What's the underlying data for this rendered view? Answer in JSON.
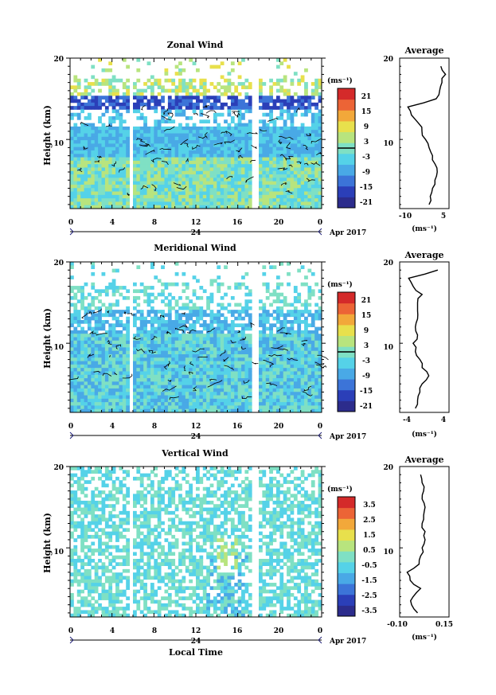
{
  "figure": {
    "x_axis_label": "Local Time",
    "date_label": "Apr 2017",
    "day_label": "24",
    "x_ticks": [
      "0",
      "4",
      "8",
      "12",
      "16",
      "20",
      "0"
    ],
    "height_label": "Height (km)",
    "height_ticks": [
      "20",
      "10"
    ],
    "average_title": "Average",
    "unit_label": "(ms⁻¹)",
    "colormap": [
      "#2c2c8c",
      "#2b3fb8",
      "#3c74d8",
      "#49a9e6",
      "#55d2e8",
      "#7fe0c4",
      "#b8e47e",
      "#e8e04c",
      "#f2a83a",
      "#ec6436",
      "#d42a2a"
    ]
  },
  "panels": [
    {
      "id": "zonal",
      "title": "Zonal Wind",
      "colorbar_ticks": [
        "21",
        "15",
        "9",
        "3",
        "-3",
        "-9",
        "-15",
        "-21"
      ],
      "colorbar_range": [
        -24,
        24
      ],
      "avg_xticks": [
        "-10",
        "5"
      ],
      "avg_xrange": [
        -14,
        7
      ]
    },
    {
      "id": "meridional",
      "title": "Meridional Wind",
      "colorbar_ticks": [
        "21",
        "15",
        "9",
        "3",
        "-3",
        "-9",
        "-15",
        "-21"
      ],
      "colorbar_range": [
        -24,
        24
      ],
      "avg_xticks": [
        "-4",
        "4"
      ],
      "avg_xrange": [
        -6,
        5
      ]
    },
    {
      "id": "vertical",
      "title": "Vertical Wind",
      "colorbar_ticks": [
        "3.5",
        "2.5",
        "1.5",
        "0.5",
        "-0.5",
        "-1.5",
        "-2.5",
        "-3.5"
      ],
      "colorbar_range": [
        -4,
        4
      ],
      "avg_xticks": [
        "-0.10",
        "0.15"
      ],
      "avg_xrange": [
        -0.15,
        0.18
      ]
    }
  ],
  "chart_data": [
    {
      "type": "heatmap",
      "title": "Zonal Wind",
      "xlabel": "",
      "ylabel": "Height (km)",
      "xlim": [
        0,
        24
      ],
      "ylim": [
        1.5,
        20
      ],
      "x_tick_values": [
        0,
        4,
        8,
        12,
        16,
        20,
        24
      ],
      "y_tick_values": [
        10,
        20
      ],
      "colorbar_label": "(ms⁻¹)",
      "colorbar_range": [
        -24,
        24
      ],
      "data_gaps_hours": [
        [
          5.6,
          6.0
        ],
        [
          17.5,
          17.9
        ]
      ],
      "profile": {
        "title": "Average",
        "xlabel": "(ms⁻¹)",
        "height_km": [
          2,
          3,
          4,
          5,
          6,
          7,
          8,
          9,
          10,
          11,
          12,
          13,
          14,
          15,
          16,
          17,
          18,
          19
        ],
        "value": [
          -1.5,
          -1.0,
          0.0,
          1.0,
          2.0,
          1.0,
          0.0,
          -1.5,
          -3.0,
          -4.5,
          -6.0,
          -9.0,
          -10.5,
          1.5,
          3.0,
          4.0,
          5.5,
          3.5
        ]
      }
    },
    {
      "type": "heatmap",
      "title": "Meridional Wind",
      "xlabel": "",
      "ylabel": "Height (km)",
      "xlim": [
        0,
        24
      ],
      "ylim": [
        1.5,
        20
      ],
      "x_tick_values": [
        0,
        4,
        8,
        12,
        16,
        20,
        24
      ],
      "y_tick_values": [
        10,
        20
      ],
      "colorbar_label": "(ms⁻¹)",
      "colorbar_range": [
        -24,
        24
      ],
      "data_gaps_hours": [
        [
          5.6,
          6.0
        ],
        [
          17.5,
          17.9
        ]
      ],
      "profile": {
        "title": "Average",
        "xlabel": "(ms⁻¹)",
        "height_km": [
          2,
          3,
          4,
          5,
          6,
          7,
          8,
          9,
          10,
          11,
          12,
          13,
          14,
          15,
          16,
          17,
          18,
          19
        ],
        "value": [
          -2.5,
          -2.0,
          -1.5,
          -1.0,
          0.5,
          -1.0,
          -1.5,
          -2.5,
          -3.0,
          -2.0,
          -2.5,
          -2.0,
          -2.0,
          -2.0,
          -1.0,
          -3.0,
          -4.0,
          2.5
        ]
      }
    },
    {
      "type": "heatmap",
      "title": "Vertical Wind",
      "xlabel": "Local Time",
      "ylabel": "Height (km)",
      "xlim": [
        0,
        24
      ],
      "ylim": [
        1.5,
        20
      ],
      "x_tick_values": [
        0,
        4,
        8,
        12,
        16,
        20,
        24
      ],
      "y_tick_values": [
        10,
        20
      ],
      "colorbar_label": "(ms⁻¹)",
      "colorbar_range": [
        -4,
        4
      ],
      "data_gaps_hours": [
        [
          5.6,
          6.0
        ],
        [
          17.5,
          17.9
        ]
      ],
      "profile": {
        "title": "Average",
        "xlabel": "(ms⁻¹)",
        "height_km": [
          2,
          3,
          4,
          5,
          6,
          7,
          8,
          9,
          10,
          11,
          12,
          13,
          14,
          15,
          16,
          17,
          18,
          19
        ],
        "value": [
          -0.03,
          -0.07,
          -0.06,
          -0.01,
          -0.08,
          -0.1,
          -0.02,
          -0.01,
          0.0,
          0.02,
          0.02,
          0.0,
          0.01,
          0.02,
          0.0,
          0.01,
          0.0,
          -0.01
        ]
      }
    }
  ]
}
